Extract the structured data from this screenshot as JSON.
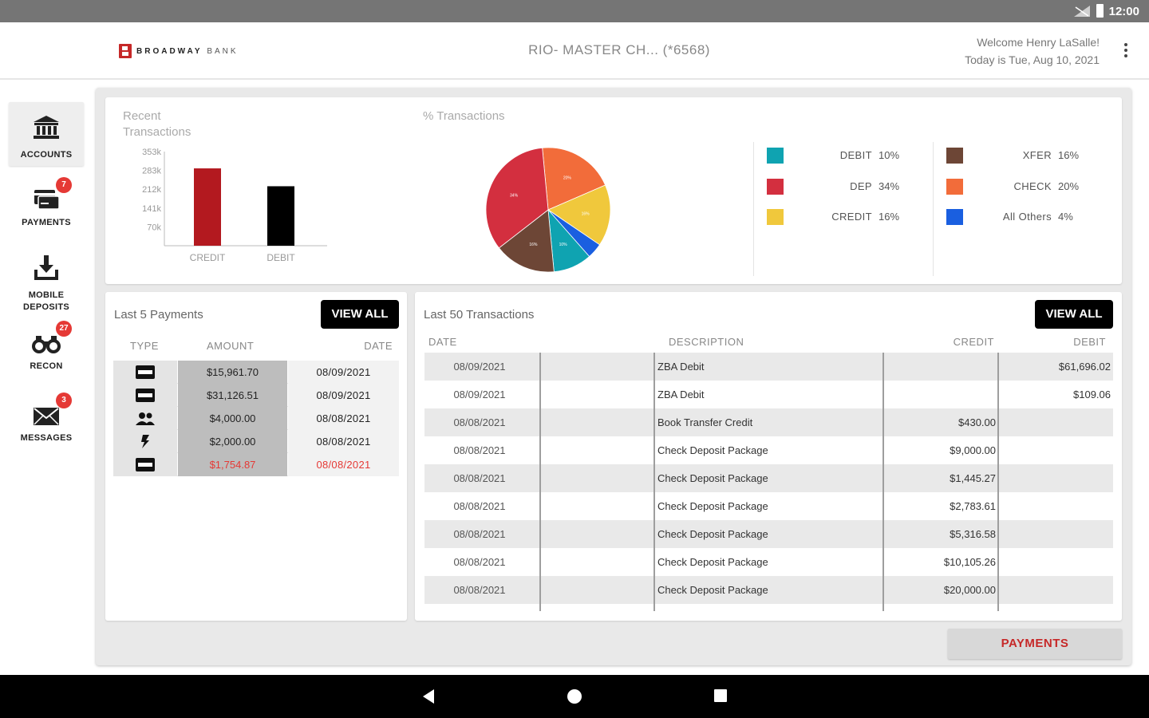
{
  "status_bar": {
    "time": "12:00"
  },
  "header": {
    "logo": {
      "brand": "BROADWAY",
      "suffix": "BANK"
    },
    "account": "RIO- MASTER CH...  (*6568)",
    "welcome": "Welcome Henry LaSalle!",
    "date": "Today is Tue, Aug 10, 2021"
  },
  "sidebar": {
    "items": [
      {
        "label": "ACCOUNTS",
        "icon": "bank-icon"
      },
      {
        "label": "PAYMENTS",
        "icon": "payments-icon",
        "badge": "7"
      },
      {
        "label": "MOBILE\nDEPOSITS",
        "label_line1": "MOBILE",
        "label_line2": "DEPOSITS",
        "icon": "download-tray-icon"
      },
      {
        "label": "RECON",
        "icon": "binoculars-icon",
        "badge": "27"
      },
      {
        "label": "MESSAGES",
        "icon": "envelope-icon",
        "badge": "3"
      }
    ]
  },
  "recent_chart": {
    "title_line1": "Recent",
    "title_line2": "Transactions"
  },
  "pie_section": {
    "title": "% Transactions"
  },
  "chart_data": [
    {
      "type": "bar",
      "title": "Recent Transactions",
      "categories": [
        "CREDIT",
        "DEBIT"
      ],
      "values": [
        290,
        223
      ],
      "colors": [
        "#b3191f",
        "#000000"
      ],
      "yticks": [
        "70k",
        "141k",
        "212k",
        "283k",
        "353k"
      ],
      "ytick_values": [
        70,
        141,
        212,
        283,
        353
      ],
      "ylim": [
        0,
        353
      ],
      "units": "k"
    },
    {
      "type": "pie",
      "title": "% Transactions",
      "slices": [
        {
          "label": "DEBIT",
          "value": 10,
          "color": "#0fa3b1"
        },
        {
          "label": "DEP",
          "value": 34,
          "color": "#d32f3f"
        },
        {
          "label": "CREDIT",
          "value": 16,
          "color": "#f0c83c"
        },
        {
          "label": "XFER",
          "value": 16,
          "color": "#6d4636"
        },
        {
          "label": "CHECK",
          "value": 20,
          "color": "#f26c3a"
        },
        {
          "label": "All Others",
          "value": 4,
          "color": "#1a5fe0"
        }
      ],
      "pie_order": [
        "CHECK",
        "CREDIT",
        "All Others",
        "DEBIT",
        "XFER",
        "DEP"
      ]
    }
  ],
  "legend": {
    "left": [
      {
        "label": "DEBIT",
        "value": "10%",
        "color": "#0fa3b1"
      },
      {
        "label": "DEP",
        "value": "34%",
        "color": "#d32f3f"
      },
      {
        "label": "CREDIT",
        "value": "16%",
        "color": "#f0c83c"
      }
    ],
    "right": [
      {
        "label": "XFER",
        "value": "16%",
        "color": "#6d4636"
      },
      {
        "label": "CHECK",
        "value": "20%",
        "color": "#f26c3a"
      },
      {
        "label": "All Others",
        "value": "4%",
        "color": "#1a5fe0"
      }
    ]
  },
  "payments": {
    "title": "Last 5 Payments",
    "view_all": "VIEW ALL",
    "columns": [
      "TYPE",
      "AMOUNT",
      "DATE"
    ],
    "rows": [
      {
        "type_icon": "ach-icon",
        "amount": "$15,961.70",
        "date": "08/09/2021",
        "highlight": false
      },
      {
        "type_icon": "ach-icon",
        "amount": "$31,126.51",
        "date": "08/09/2021",
        "highlight": false
      },
      {
        "type_icon": "people-icon",
        "amount": "$4,000.00",
        "date": "08/08/2021",
        "highlight": false
      },
      {
        "type_icon": "lightning-icon",
        "amount": "$2,000.00",
        "date": "08/08/2021",
        "highlight": false
      },
      {
        "type_icon": "ach-icon",
        "amount": "$1,754.87",
        "date": "08/08/2021",
        "highlight": true
      }
    ]
  },
  "transactions": {
    "title": "Last 50 Transactions",
    "view_all": "VIEW ALL",
    "columns": [
      "DATE",
      "DESCRIPTION",
      "CREDIT",
      "DEBIT"
    ],
    "rows": [
      {
        "date": "08/09/2021",
        "description": "ZBA Debit",
        "credit": "",
        "debit": "$61,696.02"
      },
      {
        "date": "08/09/2021",
        "description": "ZBA Debit",
        "credit": "",
        "debit": "$109.06"
      },
      {
        "date": "08/08/2021",
        "description": "Book Transfer Credit",
        "credit": "$430.00",
        "debit": ""
      },
      {
        "date": "08/08/2021",
        "description": "Check Deposit Package",
        "credit": "$9,000.00",
        "debit": ""
      },
      {
        "date": "08/08/2021",
        "description": "Check Deposit Package",
        "credit": "$1,445.27",
        "debit": ""
      },
      {
        "date": "08/08/2021",
        "description": "Check Deposit Package",
        "credit": "$2,783.61",
        "debit": ""
      },
      {
        "date": "08/08/2021",
        "description": "Check Deposit Package",
        "credit": "$5,316.58",
        "debit": ""
      },
      {
        "date": "08/08/2021",
        "description": "Check Deposit Package",
        "credit": "$10,105.26",
        "debit": ""
      },
      {
        "date": "08/08/2021",
        "description": "Check Deposit Package",
        "credit": "$20,000.00",
        "debit": ""
      }
    ]
  },
  "footer": {
    "payments_button": "PAYMENTS"
  },
  "colors": {
    "accent": "#c62828",
    "badge": "#e53935",
    "header_bg": "#ffffff",
    "status_bar": "#757575"
  }
}
